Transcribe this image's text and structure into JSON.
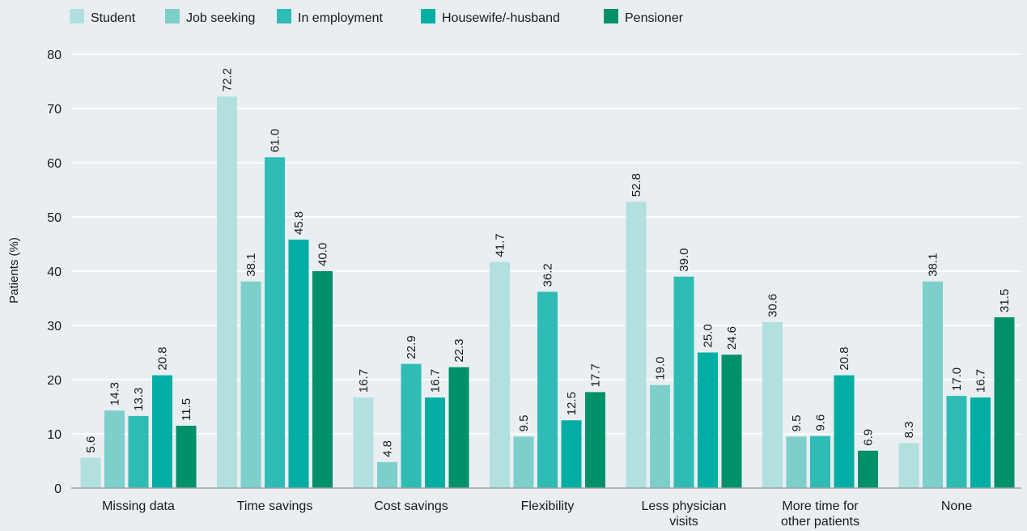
{
  "chart_data": {
    "type": "bar",
    "title": "",
    "xlabel": "",
    "ylabel": "Patients (%)",
    "ylim": [
      0,
      80
    ],
    "yticks": [
      0,
      10,
      20,
      30,
      40,
      50,
      60,
      70,
      80
    ],
    "grid": true,
    "legend_position": "top-left",
    "categories": [
      [
        "Missing data"
      ],
      [
        "Time savings"
      ],
      [
        "Cost savings"
      ],
      [
        "Flexibility"
      ],
      [
        "Less physician",
        "visits"
      ],
      [
        "More time for",
        "other patients"
      ],
      [
        "None"
      ]
    ],
    "series": [
      {
        "name": "Student",
        "color": "#b1e0de",
        "values": [
          5.6,
          72.2,
          16.7,
          41.7,
          52.8,
          30.6,
          8.3
        ]
      },
      {
        "name": "Job seeking",
        "color": "#7ccfca",
        "values": [
          14.3,
          38.1,
          4.8,
          9.5,
          19.0,
          9.5,
          38.1
        ]
      },
      {
        "name": "In employment",
        "color": "#2fbcb4",
        "values": [
          13.3,
          61.0,
          22.9,
          36.2,
          39.0,
          9.6,
          17.0
        ]
      },
      {
        "name": "Housewife/-husband",
        "color": "#00aea4",
        "values": [
          20.8,
          45.8,
          16.7,
          12.5,
          25.0,
          20.8,
          16.7
        ]
      },
      {
        "name": "Pensioner",
        "color": "#009169",
        "values": [
          11.5,
          40.0,
          22.3,
          17.7,
          24.6,
          6.9,
          31.5
        ]
      }
    ]
  }
}
